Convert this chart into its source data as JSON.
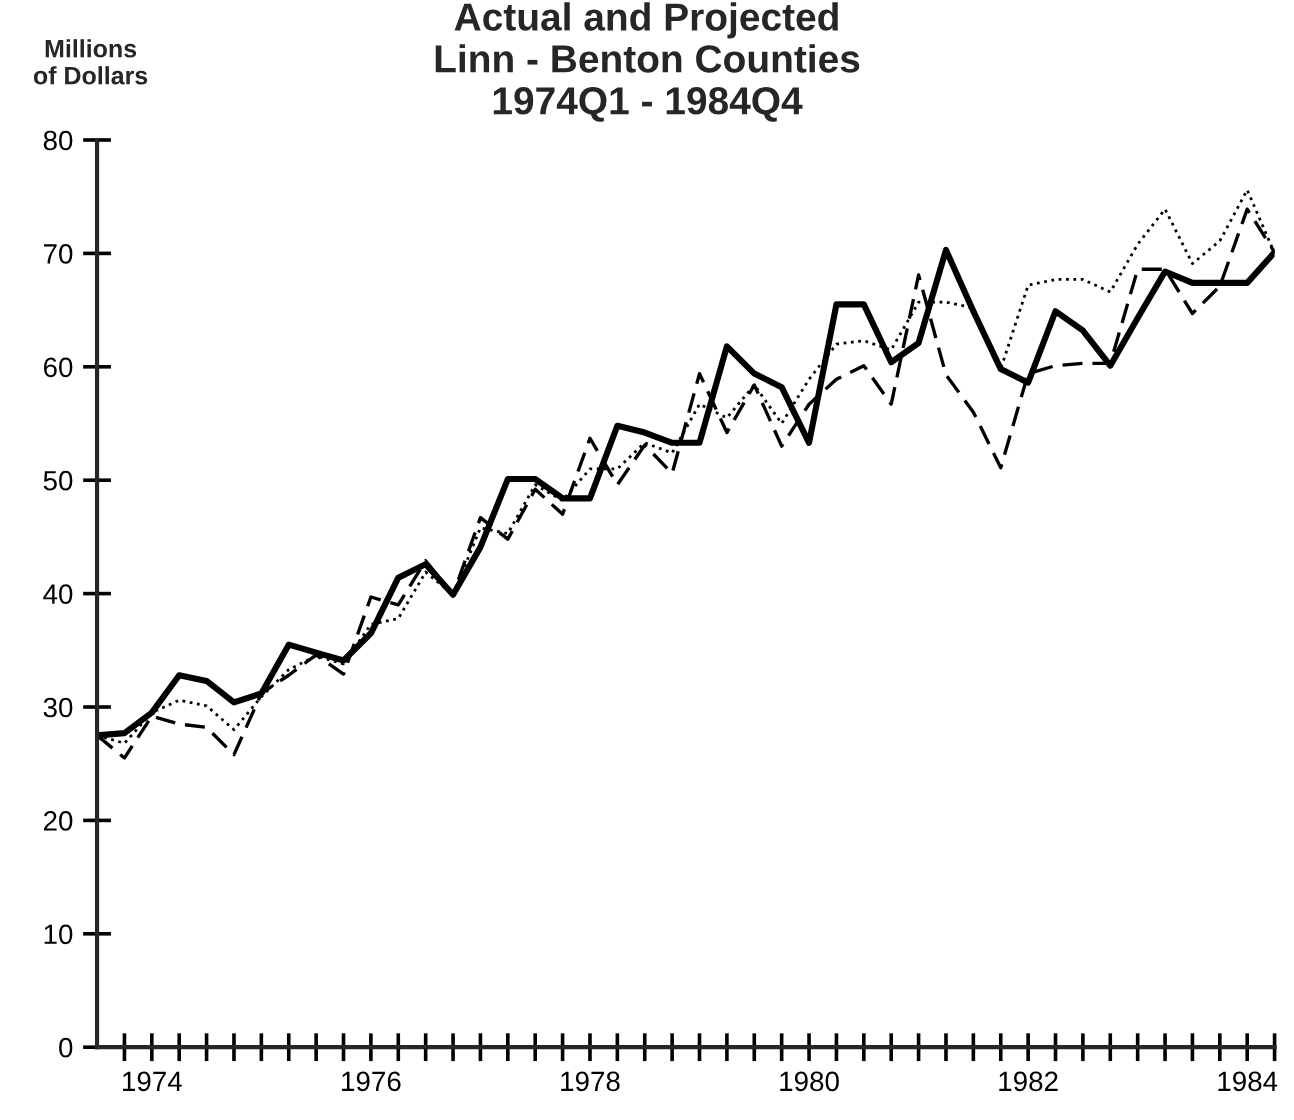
{
  "chart_data": {
    "type": "line",
    "title": "Actual and Projected\nLinn - Benton Counties\n1974Q1 - 1984Q4",
    "ylabel": "Millions\nof Dollars",
    "x": [
      1974.0,
      1974.25,
      1974.5,
      1974.75,
      1975.0,
      1975.25,
      1975.5,
      1975.75,
      1976.0,
      1976.25,
      1976.5,
      1976.75,
      1977.0,
      1977.25,
      1977.5,
      1977.75,
      1978.0,
      1978.25,
      1978.5,
      1978.75,
      1979.0,
      1979.25,
      1979.5,
      1979.75,
      1980.0,
      1980.25,
      1980.5,
      1980.75,
      1981.0,
      1981.25,
      1981.5,
      1981.75,
      1982.0,
      1982.25,
      1982.5,
      1982.75,
      1983.0,
      1983.25,
      1983.5,
      1983.75,
      1984.0,
      1984.25,
      1984.5,
      1984.75
    ],
    "series": [
      {
        "color": "#000000",
        "line_style": "dashed",
        "values": [
          27.5,
          25.5,
          29.2,
          28.5,
          28.2,
          25.8,
          31.2,
          32.8,
          34.6,
          32.9,
          39.7,
          39.0,
          42.9,
          39.9,
          46.7,
          44.8,
          49.2,
          47.0,
          53.7,
          49.6,
          53.1,
          50.6,
          59.4,
          54.2,
          58.4,
          53.0,
          56.7,
          58.9,
          60.1,
          56.7,
          68.1,
          59.3,
          56.0,
          51.1,
          59.4,
          60.1,
          60.3,
          60.3,
          68.6,
          68.6,
          64.7,
          67.1,
          73.9,
          70.1
        ]
      },
      {
        "color": "#000000",
        "line_style": "dotted",
        "values": [
          27.5,
          26.8,
          29.5,
          30.6,
          30.1,
          28.0,
          30.9,
          33.3,
          34.5,
          33.8,
          37.3,
          37.8,
          41.9,
          39.9,
          45.8,
          45.3,
          49.6,
          48.2,
          51.0,
          51.0,
          53.3,
          52.4,
          56.7,
          55.5,
          58.4,
          55.0,
          58.9,
          62.0,
          62.3,
          61.5,
          65.7,
          65.7,
          65.2,
          59.8,
          67.2,
          67.7,
          67.7,
          66.6,
          70.8,
          73.9,
          69.1,
          71.1,
          75.6,
          70.0
        ]
      },
      {
        "color": "#000000",
        "line_style": "solid",
        "values": [
          27.5,
          27.7,
          29.5,
          32.8,
          32.3,
          30.4,
          31.2,
          35.5,
          34.8,
          34.1,
          36.5,
          41.4,
          42.6,
          39.9,
          44.1,
          50.1,
          50.1,
          48.4,
          48.4,
          54.8,
          54.2,
          53.3,
          53.3,
          61.8,
          59.4,
          58.2,
          53.3,
          65.5,
          65.5,
          60.4,
          62.1,
          70.3,
          64.9,
          59.8,
          58.6,
          64.9,
          63.2,
          60.1,
          64.3,
          68.4,
          67.4,
          67.4,
          67.4,
          70.1
        ]
      }
    ],
    "xlim": [
      1974.0,
      1984.75
    ],
    "ylim": [
      0,
      80
    ],
    "yticks": [
      0,
      10,
      20,
      30,
      40,
      50,
      60,
      70,
      80
    ],
    "xticks": [
      {
        "value": 1974.25,
        "label": null
      },
      {
        "value": 1974.5,
        "label": "1974"
      },
      {
        "value": 1974.75,
        "label": null
      },
      {
        "value": 1975.0,
        "label": null
      },
      {
        "value": 1975.25,
        "label": null
      },
      {
        "value": 1975.5,
        "label": null
      },
      {
        "value": 1975.75,
        "label": null
      },
      {
        "value": 1976.0,
        "label": null
      },
      {
        "value": 1976.25,
        "label": null
      },
      {
        "value": 1976.5,
        "label": "1976"
      },
      {
        "value": 1976.75,
        "label": null
      },
      {
        "value": 1977.0,
        "label": null
      },
      {
        "value": 1977.25,
        "label": null
      },
      {
        "value": 1977.5,
        "label": null
      },
      {
        "value": 1977.75,
        "label": null
      },
      {
        "value": 1978.0,
        "label": null
      },
      {
        "value": 1978.25,
        "label": null
      },
      {
        "value": 1978.5,
        "label": "1978"
      },
      {
        "value": 1978.75,
        "label": null
      },
      {
        "value": 1979.0,
        "label": null
      },
      {
        "value": 1979.25,
        "label": null
      },
      {
        "value": 1979.5,
        "label": null
      },
      {
        "value": 1979.75,
        "label": null
      },
      {
        "value": 1980.0,
        "label": null
      },
      {
        "value": 1980.25,
        "label": null
      },
      {
        "value": 1980.5,
        "label": "1980"
      },
      {
        "value": 1980.75,
        "label": null
      },
      {
        "value": 1981.0,
        "label": null
      },
      {
        "value": 1981.25,
        "label": null
      },
      {
        "value": 1981.5,
        "label": null
      },
      {
        "value": 1981.75,
        "label": null
      },
      {
        "value": 1982.0,
        "label": null
      },
      {
        "value": 1982.25,
        "label": null
      },
      {
        "value": 1982.5,
        "label": "1982"
      },
      {
        "value": 1982.75,
        "label": null
      },
      {
        "value": 1983.0,
        "label": null
      },
      {
        "value": 1983.25,
        "label": null
      },
      {
        "value": 1983.5,
        "label": null
      },
      {
        "value": 1983.75,
        "label": null
      },
      {
        "value": 1984.0,
        "label": null
      },
      {
        "value": 1984.25,
        "label": null
      },
      {
        "value": 1984.5,
        "label": "1984"
      },
      {
        "value": 1984.75,
        "label": null
      }
    ],
    "grid": false,
    "marker": "none"
  }
}
